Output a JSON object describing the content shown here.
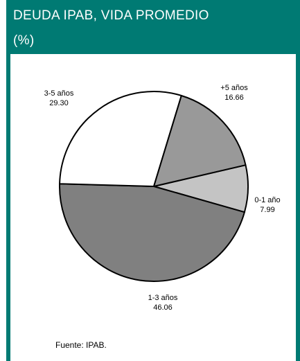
{
  "header": {
    "title_line1": "DEUDA IPAB, VIDA PROMEDIO",
    "title_line2": "(%)",
    "background_color": "#007a73"
  },
  "chart_data": {
    "type": "pie",
    "title": "DEUDA IPAB, VIDA PROMEDIO (%)",
    "slices": [
      {
        "label": "0-1 año",
        "value": 7.99,
        "display": "7.99",
        "color": "#c4c4c4"
      },
      {
        "label": "1-3 años",
        "value": 46.06,
        "display": "46.06",
        "color": "#808080"
      },
      {
        "label": "3-5 años",
        "value": 29.3,
        "display": "29.30",
        "color": "#ffffff"
      },
      {
        "label": "+5 años",
        "value": 16.66,
        "display": "16.66",
        "color": "#999999"
      }
    ]
  },
  "footer": {
    "source": "Fuente: IPAB."
  }
}
